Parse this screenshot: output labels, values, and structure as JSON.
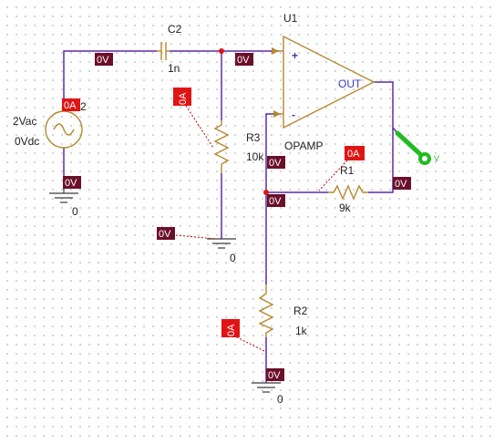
{
  "components": {
    "c2": {
      "ref": "C2",
      "value": "1n"
    },
    "u1": {
      "ref": "U1",
      "model": "OPAMP",
      "pin_plus": "+",
      "pin_minus": "-",
      "pin_out": "OUT"
    },
    "source": {
      "ref_fragment": "2",
      "ac": "2Vac",
      "dc": "0Vdc"
    },
    "r3": {
      "ref": "R3",
      "value_fragment": "10k"
    },
    "r1": {
      "ref": "R1",
      "value": "9k"
    },
    "r2": {
      "ref": "R2",
      "value": "1k"
    },
    "gnd_labels": [
      "0",
      "0",
      "0"
    ]
  },
  "markers": {
    "voltage": "0V",
    "current": "0A",
    "probe_text": "V"
  },
  "colors": {
    "wire": "#5a2ca8",
    "component": "#b5882d",
    "voltage_marker": "#6b0f2a",
    "current_marker": "#e01414",
    "probe": "#22bb22"
  }
}
